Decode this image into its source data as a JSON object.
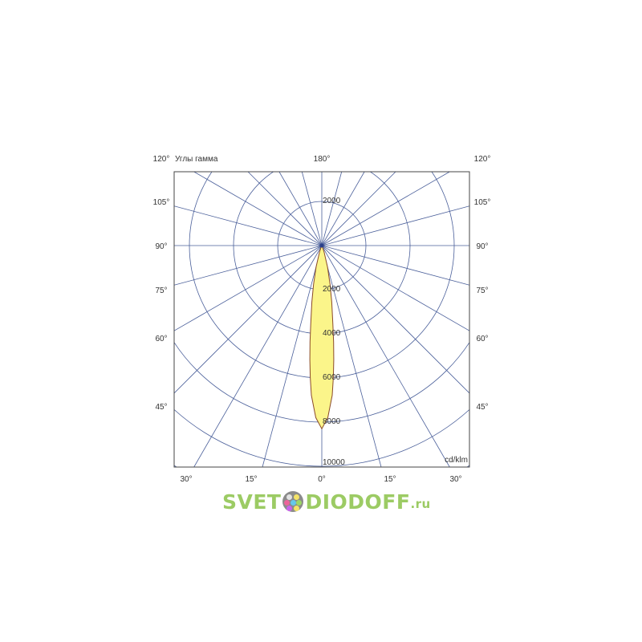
{
  "chart_data": {
    "type": "polar",
    "title": "Углы гамма",
    "unit_label": "cd/klm",
    "radial_ticks": [
      2000,
      4000,
      6000,
      8000,
      10000
    ],
    "radial_max": 10000,
    "top_radial_tick": "2000",
    "angle_step_deg": 15,
    "side_angle_labels": [
      "120°",
      "105°",
      "90°",
      "75°",
      "60°",
      "45°"
    ],
    "top_angle_label": "180°",
    "bottom_angle_labels": [
      "30°",
      "15°",
      "0°",
      "15°",
      "30°"
    ],
    "grid": true,
    "series": [
      {
        "gamma_deg": [
          0,
          2,
          4,
          5,
          6,
          7,
          8,
          10,
          12,
          15,
          20,
          25,
          30
        ],
        "intensity": [
          8300,
          7800,
          6800,
          6000,
          5200,
          4400,
          3600,
          2600,
          1800,
          1000,
          300,
          50,
          0
        ]
      }
    ],
    "colors": {
      "grid": "#4a5f9a",
      "fill": "#fbf58a",
      "outline": "#8a4a2a"
    }
  },
  "watermark": {
    "text_left": "SVET",
    "text_right": "DIODOFF",
    "suffix": ".ru",
    "color": "#8bc34a"
  }
}
